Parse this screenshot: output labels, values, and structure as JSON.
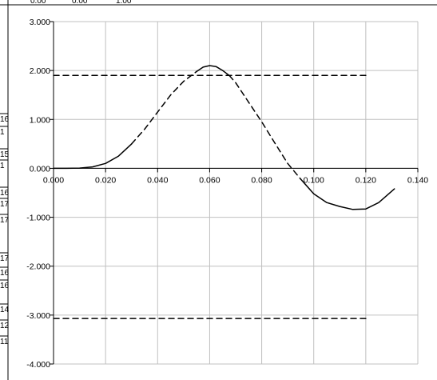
{
  "spreadsheet": {
    "top_fragments": [
      "0.00",
      "0.00",
      "1.00"
    ],
    "row_fragments": [
      "16",
      "1",
      "15",
      "1",
      "16",
      "17",
      "17",
      "17",
      "16",
      "16",
      "14",
      "12",
      "11"
    ]
  },
  "chart_data": {
    "type": "line",
    "title": "",
    "xlabel": "",
    "ylabel": "",
    "xlim": [
      0,
      0.14
    ],
    "ylim": [
      -4,
      3
    ],
    "x_ticks": [
      "0.000",
      "0.020",
      "0.040",
      "0.060",
      "0.080",
      "0.100",
      "0.120",
      "0.140"
    ],
    "y_ticks": [
      "3.000",
      "2.000",
      "1.000",
      "0.000",
      "-1.000",
      "-2.000",
      "-3.000",
      "-4.000"
    ],
    "grid": true,
    "legend": "none",
    "series": [
      {
        "style": "solid",
        "color": "#000000",
        "x": [
          0.0,
          0.005,
          0.01,
          0.015,
          0.02,
          0.025,
          0.03
        ],
        "y": [
          0.0,
          0.0,
          0.005,
          0.03,
          0.1,
          0.25,
          0.5
        ]
      },
      {
        "style": "dashed",
        "color": "#000000",
        "x": [
          0.03,
          0.035,
          0.04,
          0.045,
          0.05,
          0.055
        ],
        "y": [
          0.5,
          0.8,
          1.15,
          1.5,
          1.78,
          1.98
        ]
      },
      {
        "style": "solid",
        "color": "#000000",
        "x": [
          0.055,
          0.0575,
          0.06,
          0.0625,
          0.065,
          0.0675
        ],
        "y": [
          1.98,
          2.07,
          2.1,
          2.08,
          2.0,
          1.9
        ]
      },
      {
        "style": "dashed",
        "color": "#000000",
        "x": [
          0.0675,
          0.07,
          0.075,
          0.08,
          0.085,
          0.09,
          0.095
        ],
        "y": [
          1.9,
          1.75,
          1.35,
          0.95,
          0.52,
          0.1,
          -0.22
        ]
      },
      {
        "style": "solid",
        "color": "#000000",
        "x": [
          0.095,
          0.1,
          0.105,
          0.11,
          0.115,
          0.12,
          0.125,
          0.131
        ],
        "y": [
          -0.22,
          -0.52,
          -0.7,
          -0.78,
          -0.84,
          -0.83,
          -0.7,
          -0.42
        ]
      },
      {
        "style": "dashed",
        "color": "#000000",
        "x": [
          0.0,
          0.12
        ],
        "y": [
          1.9,
          1.9
        ]
      },
      {
        "style": "dashed",
        "color": "#000000",
        "x": [
          0.0,
          0.12
        ],
        "y": [
          -3.07,
          -3.07
        ]
      }
    ]
  }
}
